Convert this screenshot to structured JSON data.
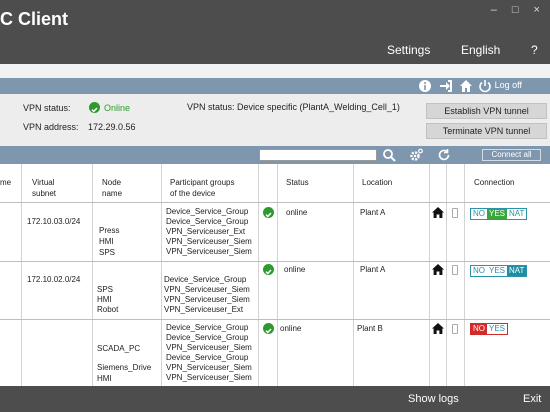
{
  "window": {
    "title": "C Client",
    "controls": "– □ ×"
  },
  "menu": {
    "settings": "Settings",
    "language": "English",
    "help": "?"
  },
  "userbar": {
    "logoff": "Log off"
  },
  "status": {
    "vpn_status_label": "VPN status:",
    "vpn_status_value": "Online",
    "vpn_address_label": "VPN address:",
    "vpn_address_value": "172.29.0.56",
    "device_status_label": "VPN status:",
    "device_status_value": "Device specific (PlantA_Welding_Cell_1)",
    "establish_button": "Establish VPN tunnel",
    "terminate_button": "Terminate VPN tunnel"
  },
  "toolbar": {
    "search_value": "",
    "connect_all": "Connect all"
  },
  "table": {
    "headers": {
      "name": "me",
      "subnet_1": "Virtual",
      "subnet_2": "subnet",
      "node_1": "Node",
      "node_2": "name",
      "groups_1": "Participant groups",
      "groups_2": "of the device",
      "status": "Status",
      "location": "Location",
      "connection": "Connection"
    },
    "rows": [
      {
        "subnet": "172.10.03.0/24",
        "nodes": [
          "Press",
          "HMI",
          "SPS"
        ],
        "groups": [
          "Device_Service_Group",
          "Device_Service_Group",
          "VPN_Serviceuser_Ext",
          "VPN_Serviceuser_Siem",
          "VPN_Serviceuser_Siem"
        ],
        "status": "online",
        "location": "Plant A",
        "toggle": [
          "NO",
          "YES",
          "NAT"
        ]
      },
      {
        "subnet": "172.10.02.0/24",
        "nodes": [
          "SPS",
          "HMI",
          "Robot"
        ],
        "groups": [
          "Device_Service_Group",
          "VPN_Serviceuser_Siem",
          "VPN_Serviceuser_Siem",
          "VPN_Serviceuser_Ext"
        ],
        "status": "online",
        "location": "Plant A",
        "toggle": [
          "NO",
          "YES",
          "NAT"
        ]
      },
      {
        "subnet": "",
        "nodes": [
          "SCADA_PC",
          "Siemens_Drive",
          "HMI"
        ],
        "groups": [
          "Device_Service_Group",
          "Device_Service_Group",
          "VPN_Serviceuser_Siem",
          "Device_Service_Group",
          "VPN_Serviceuser_Siem",
          "VPN_Serviceuser_Siem"
        ],
        "status": "online",
        "location": "Plant B",
        "toggle": [
          "NO",
          "YES"
        ]
      }
    ]
  },
  "footer": {
    "show_logs": "Show logs",
    "exit": "Exit"
  },
  "colors": {
    "header_dark": "#4d4d4d",
    "accent_blue": "#7f97ae",
    "online_green": "#2e9a2e",
    "toggle_teal": "#1f8ea3",
    "toggle_red": "#d42a2a"
  }
}
